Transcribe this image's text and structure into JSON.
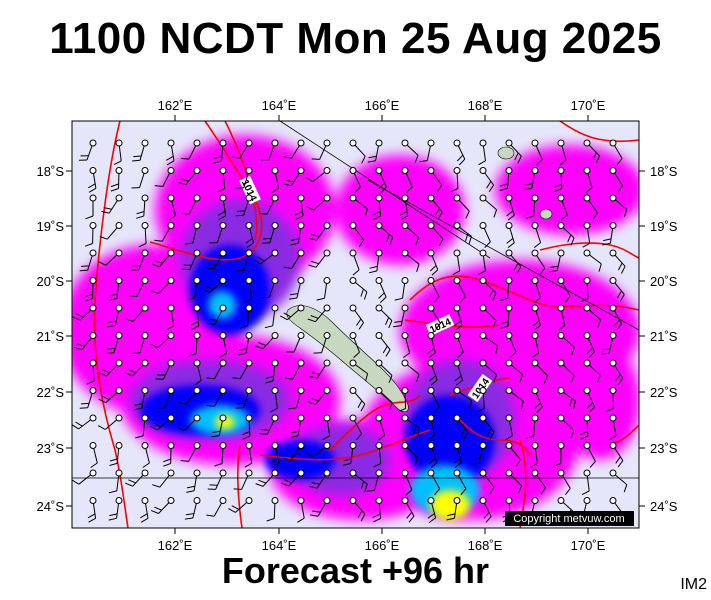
{
  "header": {
    "title": "1100 NCDT Mon 25 Aug 2025"
  },
  "footer": {
    "forecast": "Forecast +96 hr",
    "image_code": "IM2"
  },
  "map": {
    "type": "weather forecast map (rain/cloud shading, wind barbs, isobars)",
    "lon_labels": [
      "162˚E",
      "164˚E",
      "166˚E",
      "168˚E",
      "170˚E"
    ],
    "lat_labels": [
      "18˚S",
      "19˚S",
      "20˚S",
      "21˚S",
      "22˚S",
      "23˚S",
      "24˚S"
    ],
    "isobar_labels": [
      "1014",
      "1014",
      "1014"
    ],
    "copyright": "Copyright metvuw.com",
    "colors": {
      "background": "#e6e6fa",
      "light_rain": "#ff00ff",
      "moderate": "#8a2be2",
      "heavy": "#0000ff",
      "very_heavy": "#00bfff",
      "extreme": "#ffff00",
      "isobar": "#ff0000",
      "land": "#c8d8c0"
    }
  }
}
